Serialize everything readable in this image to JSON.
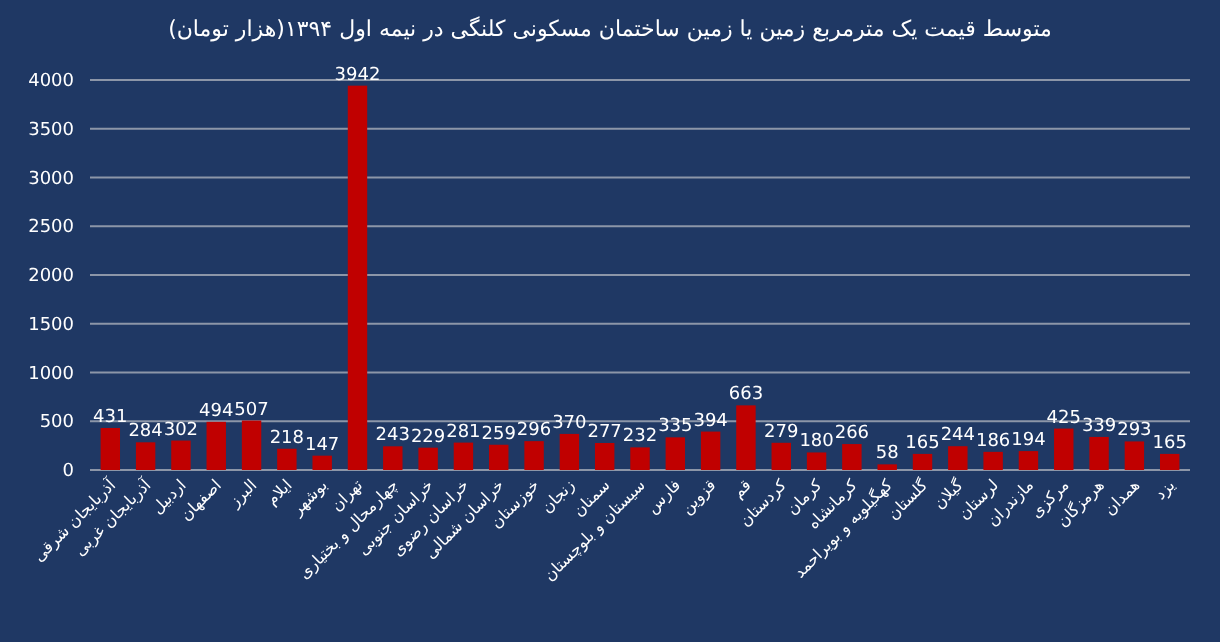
{
  "chart_data": {
    "type": "bar",
    "title": "متوسط قیمت یک مترمربع زمین یا زمین ساختمان مسکونی کلنگی در نیمه اول ۱۳۹۴(هزار تومان)",
    "categories": [
      "آذربایجان شرقی",
      "آذربایجان غربی",
      "اردبیل",
      "اصفهان",
      "البرز",
      "ایلام",
      "بوشهر",
      "تهران",
      "چهارمحال و بختیاری",
      "خراسان جنوبی",
      "خراسان رضوی",
      "خراسان شمالی",
      "خوزستان",
      "زنجان",
      "سمنان",
      "سیستان و بلوچستان",
      "فارس",
      "قزوین",
      "قم",
      "کردستان",
      "کرمان",
      "کرمانشاه",
      "کهگیلویه و بویراحمد",
      "گلستان",
      "گیلان",
      "لرستان",
      "مازندران",
      "مرکزی",
      "هرمزگان",
      "همدان",
      "یزد"
    ],
    "values": [
      431,
      284,
      302,
      494,
      507,
      218,
      147,
      3942,
      243,
      229,
      281,
      259,
      296,
      370,
      277,
      232,
      335,
      394,
      663,
      279,
      180,
      266,
      58,
      165,
      244,
      186,
      194,
      425,
      339,
      293,
      165
    ],
    "color": "#c00000",
    "ylim": [
      0,
      4000
    ],
    "yticks": [
      0,
      500,
      1000,
      1500,
      2000,
      2500,
      3000,
      3500,
      4000
    ],
    "grid": "y",
    "data_labels": true
  }
}
